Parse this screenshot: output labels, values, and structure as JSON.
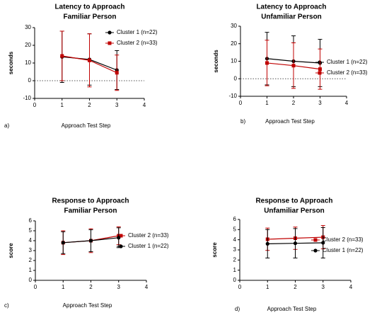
{
  "chart_data": [
    {
      "type": "line",
      "title": [
        "Latency to Approach",
        "Familiar Person"
      ],
      "panel_label": "a)",
      "x_label": "Approach Test Step",
      "y_label": "seconds",
      "x": [
        1,
        2,
        3
      ],
      "xlim": [
        0,
        4
      ],
      "xticks": [
        0,
        1,
        2,
        3,
        4
      ],
      "ylim": [
        -10,
        30
      ],
      "yticks": [
        -10,
        0,
        10,
        20,
        30
      ],
      "reference_line": 0,
      "series": [
        {
          "name": "Cluster 1 (n=22)",
          "color": "#000000",
          "marker": "circle",
          "values": [
            13.5,
            12,
            6
          ],
          "errors": [
            14.5,
            14.5,
            11
          ]
        },
        {
          "name": "Cluster 2 (n=33)",
          "color": "#c00000",
          "marker": "square",
          "values": [
            14,
            11.5,
            4.5
          ],
          "errors": [
            14,
            15,
            10
          ]
        }
      ]
    },
    {
      "type": "line",
      "title": [
        "Latency to Approach",
        "Unfamiliar Person"
      ],
      "panel_label": "b)",
      "x_label": "Approach Test Step",
      "y_label": "seconds",
      "x": [
        1,
        2,
        3
      ],
      "xlim": [
        0,
        4
      ],
      "xticks": [
        0,
        1,
        2,
        3,
        4
      ],
      "ylim": [
        -10,
        30
      ],
      "yticks": [
        -10,
        0,
        10,
        20,
        30
      ],
      "reference_line": 0,
      "series": [
        {
          "name": "Cluster 1 (n=22)",
          "color": "#000000",
          "marker": "circle",
          "values": [
            11.5,
            10,
            9
          ],
          "errors": [
            15,
            14.5,
            13.5
          ]
        },
        {
          "name": "Cluster 2 (n=33)",
          "color": "#c00000",
          "marker": "square",
          "values": [
            9,
            7.5,
            5.5
          ],
          "errors": [
            13,
            13,
            11.5
          ]
        }
      ]
    },
    {
      "type": "line",
      "title": [
        "Response to Approach",
        "Familiar Person"
      ],
      "panel_label": "c)",
      "x_label": "Approach Test Step",
      "y_label": "score",
      "x": [
        1,
        2,
        3
      ],
      "xlim": [
        0,
        4
      ],
      "xticks": [
        0,
        1,
        2,
        3,
        4
      ],
      "ylim": [
        0,
        6
      ],
      "yticks": [
        0,
        1,
        2,
        3,
        4,
        5,
        6
      ],
      "series": [
        {
          "name": "Cluster 2 (n=33)",
          "color": "#c00000",
          "marker": "square",
          "values": [
            3.8,
            4.0,
            4.5
          ],
          "errors": [
            1.2,
            1.2,
            0.9
          ]
        },
        {
          "name": "Cluster 1 (n=22)",
          "color": "#000000",
          "marker": "circle",
          "values": [
            3.8,
            4.0,
            4.3
          ],
          "errors": [
            1.1,
            1.1,
            1.0
          ]
        }
      ]
    },
    {
      "type": "line",
      "title": [
        "Response to Approach",
        "Unfamiliar Person"
      ],
      "panel_label": "d)",
      "x_label": "Approach Test Step",
      "y_label": "score",
      "x": [
        1,
        2,
        3
      ],
      "xlim": [
        0,
        4
      ],
      "xticks": [
        0,
        1,
        2,
        3,
        4
      ],
      "ylim": [
        0,
        6
      ],
      "yticks": [
        0,
        1,
        2,
        3,
        4,
        5,
        6
      ],
      "series": [
        {
          "name": "Cluster 2 (n=33)",
          "color": "#c00000",
          "marker": "square",
          "values": [
            4.05,
            4.15,
            4.25
          ],
          "errors": [
            1.1,
            1.1,
            1.15
          ]
        },
        {
          "name": "Cluster 1 (n=22)",
          "color": "#000000",
          "marker": "circle",
          "values": [
            3.6,
            3.65,
            3.7
          ],
          "errors": [
            1.4,
            1.45,
            1.5
          ]
        }
      ]
    }
  ]
}
